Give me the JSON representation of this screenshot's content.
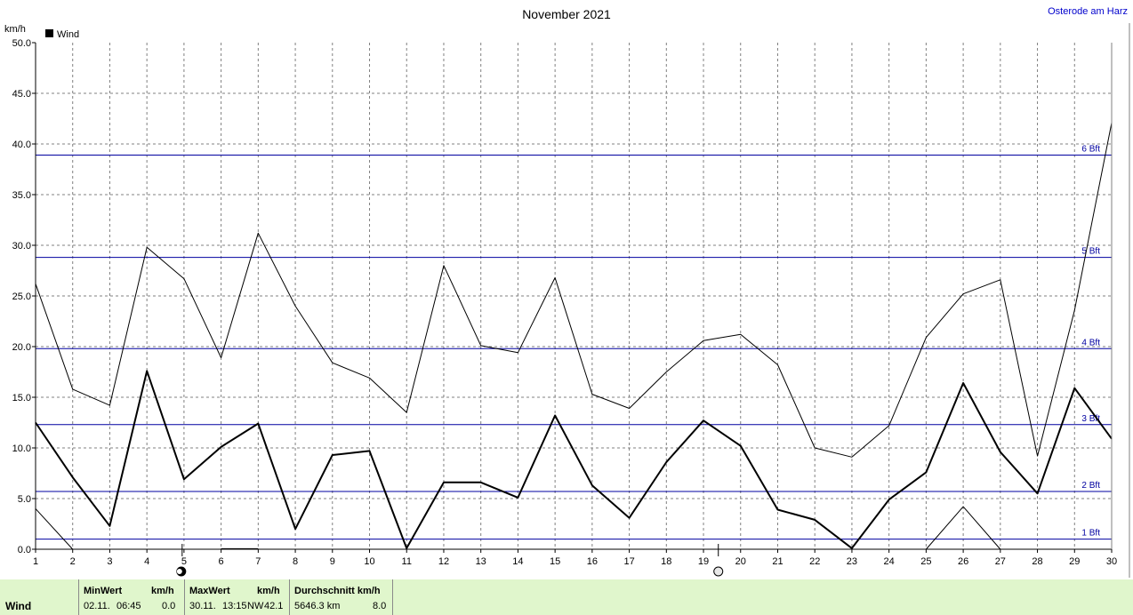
{
  "header": {
    "title": "November 2021",
    "station": "Osterode am Harz"
  },
  "chart_data": {
    "type": "line",
    "title": "November 2021",
    "ylabel": "km/h",
    "xlabel": "",
    "xlim": [
      1,
      30
    ],
    "ylim": [
      0,
      50
    ],
    "x_ticks": [
      "1",
      "2",
      "3",
      "4",
      "5",
      "6",
      "7",
      "8",
      "9",
      "10",
      "11",
      "12",
      "13",
      "14",
      "15",
      "16",
      "17",
      "18",
      "19",
      "20",
      "21",
      "22",
      "23",
      "24",
      "25",
      "26",
      "27",
      "28",
      "29",
      "30"
    ],
    "y_ticks": [
      "0.0",
      "5.0",
      "10.0",
      "15.0",
      "20.0",
      "25.0",
      "30.0",
      "35.0",
      "40.0",
      "45.0",
      "50.0"
    ],
    "grid": true,
    "legend": {
      "position": "top-left",
      "label": "Wind"
    },
    "series": [
      {
        "name": "Wind",
        "color": "#000000",
        "style": "bold",
        "x": [
          1,
          2,
          3,
          4,
          5,
          6,
          7,
          8,
          9,
          10,
          11,
          12,
          13,
          14,
          15,
          16,
          17,
          18,
          19,
          20,
          21,
          22,
          23,
          24,
          25,
          26,
          27,
          28,
          29,
          30
        ],
        "values": [
          12.5,
          7.1,
          2.3,
          17.6,
          6.9,
          10.1,
          12.4,
          2.0,
          9.3,
          9.7,
          0.1,
          6.6,
          6.6,
          5.1,
          13.2,
          6.3,
          3.1,
          8.6,
          12.7,
          10.2,
          3.9,
          2.9,
          0.1,
          4.9,
          7.6,
          16.4,
          9.6,
          5.5,
          15.9,
          10.9
        ]
      },
      {
        "name": "",
        "color": "#000000",
        "style": "thin",
        "x": [
          1,
          2,
          3,
          4,
          5,
          6,
          7,
          8,
          9,
          10,
          11,
          12,
          13,
          14,
          15,
          16,
          17,
          18,
          19,
          20,
          21,
          22,
          23,
          24,
          25,
          26,
          27,
          28,
          29,
          30
        ],
        "values": [
          26.2,
          15.8,
          14.2,
          29.8,
          26.7,
          18.9,
          31.2,
          24.0,
          18.4,
          16.9,
          13.5,
          28.0,
          20.1,
          19.4,
          26.8,
          15.3,
          13.9,
          17.5,
          20.6,
          21.2,
          18.2,
          10.0,
          9.1,
          12.2,
          20.9,
          25.2,
          26.6,
          9.2,
          23.6,
          42.1
        ]
      },
      {
        "name": "",
        "color": "#000000",
        "style": "thin",
        "x": [
          1,
          2
        ],
        "values": [
          4.0,
          0.0
        ]
      },
      {
        "name": "",
        "color": "#000000",
        "style": "thin",
        "x": [
          25,
          26,
          27
        ],
        "values": [
          0.0,
          4.2,
          0.0
        ]
      },
      {
        "name": "",
        "color": "#000000",
        "style": "thin",
        "x": [
          6,
          7
        ],
        "values": [
          0.05,
          0.05
        ]
      }
    ],
    "reference_lines": [
      {
        "label": "1 Bft",
        "value": 1.0
      },
      {
        "label": "2 Bft",
        "value": 5.7
      },
      {
        "label": "3 Bft",
        "value": 12.3
      },
      {
        "label": "4 Bft",
        "value": 19.8
      },
      {
        "label": "5 Bft",
        "value": 28.8
      },
      {
        "label": "6 Bft",
        "value": 38.9
      }
    ],
    "reference_color": "#0000a0",
    "moon_markers": [
      {
        "day": 4.95,
        "phase": "new"
      },
      {
        "day": 19.4,
        "phase": "full"
      }
    ]
  },
  "footer": {
    "row_label": "Wind",
    "min": {
      "header": "MinWert",
      "unit": "km/h",
      "date": "02.11.",
      "time": "06:45",
      "value": "0.0"
    },
    "max": {
      "header": "MaxWert",
      "unit": "km/h",
      "date": "30.11.",
      "time": "13:15",
      "dir": "NW",
      "value": "42.1"
    },
    "avg": {
      "header": "Durchschnitt km/h",
      "distance": "5646.3 km",
      "value": "8.0"
    }
  }
}
